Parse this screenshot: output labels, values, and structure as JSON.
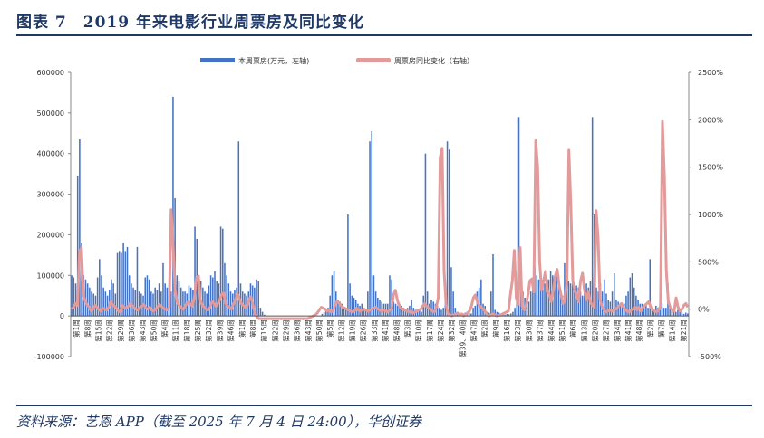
{
  "header": {
    "title": "图表 7　2019 年来电影行业周票房及同比变化"
  },
  "footer": {
    "source": "资料来源：艺恩 APP（截至 2025 年 7 月 4 日 24:00），华创证券"
  },
  "colors": {
    "bar": "#4472c4",
    "line": "#e29a9a",
    "title": "#1f3864"
  },
  "chart_data": {
    "type": "bar+line",
    "title": "",
    "xlabel": "",
    "ylabel_left": "",
    "ylabel_right": "",
    "ylim_left": [
      -100000,
      600000
    ],
    "ylim_right": [
      -500,
      2500
    ],
    "left_ticks": [
      "-100000",
      "0",
      "100000",
      "200000",
      "300000",
      "400000",
      "500000",
      "600000"
    ],
    "right_ticks": [
      "-500%",
      "0%",
      "500%",
      "1000%",
      "1500%",
      "2000%",
      "2500%"
    ],
    "grid": false,
    "legend_position": "top",
    "x_tick_labels": [
      "第1周",
      "第8周",
      "第15周",
      "第22周",
      "第29周",
      "第36周",
      "第43周",
      "第50周",
      "第4周",
      "第11周",
      "第18周",
      "第25周",
      "第32周",
      "第39周",
      "第46周",
      "第1周",
      "第8周",
      "第15周",
      "第22周",
      "第29周",
      "第36周",
      "第43周",
      "第50周",
      "第5周",
      "第12周",
      "第19周",
      "第26周",
      "第33周",
      "第41周",
      "第48周",
      "第3周",
      "第10周",
      "第17周",
      "第24周",
      "第32周",
      "第39、40周",
      "第47周",
      "第2周",
      "第9周",
      "第16周",
      "第23周",
      "第30周",
      "第37周",
      "第44周",
      "第51周",
      "第6周",
      "第13周",
      "第20周",
      "第27周",
      "第34周",
      "第41周",
      "第48周",
      "第2周",
      "第7周",
      "第14周",
      "第21周"
    ],
    "series": [
      {
        "name": "本周票房(万元，左轴)",
        "axis": "left",
        "type": "bar",
        "values": [
          100000,
          95000,
          80000,
          345000,
          435000,
          180000,
          100000,
          90000,
          80000,
          70000,
          60000,
          55000,
          50000,
          95000,
          140000,
          100000,
          70000,
          60000,
          50000,
          65000,
          90000,
          80000,
          55000,
          155000,
          160000,
          155000,
          180000,
          160000,
          170000,
          100000,
          80000,
          70000,
          65000,
          170000,
          60000,
          55000,
          50000,
          95000,
          100000,
          90000,
          60000,
          55000,
          70000,
          65000,
          80000,
          60000,
          130000,
          80000,
          70000,
          65000,
          60000,
          540000,
          290000,
          100000,
          85000,
          70000,
          60000,
          60000,
          55000,
          75000,
          70000,
          65000,
          220000,
          190000,
          100000,
          85000,
          70000,
          60000,
          55000,
          75000,
          100000,
          95000,
          110000,
          85000,
          80000,
          220000,
          215000,
          130000,
          100000,
          80000,
          60000,
          55000,
          65000,
          70000,
          430000,
          80000,
          60000,
          55000,
          50000,
          60000,
          80000,
          75000,
          70000,
          90000,
          85000,
          20000,
          10000,
          3000,
          0,
          0,
          0,
          0,
          0,
          0,
          0,
          0,
          0,
          0,
          0,
          0,
          0,
          0,
          0,
          0,
          0,
          0,
          0,
          0,
          0,
          0,
          0,
          0,
          0,
          0,
          0,
          0,
          5000,
          10000,
          15000,
          20000,
          50000,
          100000,
          110000,
          60000,
          40000,
          35000,
          30000,
          20000,
          15000,
          250000,
          80000,
          50000,
          45000,
          40000,
          30000,
          25000,
          30000,
          20000,
          15000,
          60000,
          430000,
          455000,
          100000,
          60000,
          45000,
          40000,
          35000,
          30000,
          30000,
          30000,
          100000,
          90000,
          35000,
          30000,
          25000,
          30000,
          25000,
          20000,
          15000,
          20000,
          25000,
          40000,
          20000,
          15000,
          10000,
          15000,
          10000,
          50000,
          400000,
          60000,
          30000,
          40000,
          35000,
          30000,
          25000,
          20000,
          15000,
          20000,
          40000,
          430000,
          410000,
          120000,
          60000,
          20000,
          10000,
          8000,
          5000,
          6000,
          8000,
          10000,
          8000,
          6000,
          20000,
          25000,
          60000,
          70000,
          90000,
          30000,
          25000,
          10000,
          8000,
          60000,
          152000,
          15000,
          10000,
          8000,
          5000,
          4000,
          3000,
          5000,
          4000,
          6000,
          10000,
          20000,
          40000,
          490000,
          150000,
          60000,
          45000,
          40000,
          35000,
          60000,
          70000,
          120000,
          100000,
          90000,
          110000,
          85000,
          80000,
          75000,
          90000,
          110000,
          100000,
          95000,
          110000,
          100000,
          60000,
          50000,
          130000,
          115000,
          85000,
          80000,
          95000,
          80000,
          75000,
          70000,
          60000,
          50000,
          65000,
          80000,
          70000,
          85000,
          490000,
          250000,
          70000,
          60000,
          80000,
          60000,
          90000,
          55000,
          40000,
          35000,
          60000,
          105000,
          40000,
          35000,
          30000,
          25000,
          30000,
          50000,
          60000,
          95000,
          105000,
          70000,
          50000,
          40000,
          30000,
          30000,
          25000,
          30000,
          20000,
          140000,
          20000,
          15000,
          25000,
          20000,
          15000,
          30000,
          20000,
          20000,
          80000,
          20000,
          15000,
          10000,
          10000,
          15000,
          10000,
          10000,
          5000,
          8000,
          6000
        ]
      },
      {
        "name": "周票房同比变化（右轴）",
        "axis": "right",
        "type": "line",
        "values": [
          0,
          20,
          60,
          40,
          600,
          650,
          150,
          80,
          40,
          20,
          -20,
          0,
          40,
          20,
          -10,
          -20,
          10,
          0,
          -10,
          20,
          80,
          50,
          30,
          10,
          -20,
          -30,
          40,
          20,
          10,
          30,
          60,
          40,
          20,
          0,
          -10,
          20,
          30,
          50,
          10,
          0,
          20,
          -10,
          -20,
          0,
          20,
          50,
          30,
          10,
          0,
          -10,
          20,
          1050,
          700,
          200,
          80,
          40,
          20,
          0,
          20,
          60,
          80,
          50,
          30,
          140,
          330,
          350,
          100,
          40,
          20,
          0,
          -10,
          20,
          80,
          60,
          30,
          60,
          100,
          160,
          170,
          60,
          30,
          20,
          0,
          60,
          100,
          160,
          110,
          60,
          40,
          20,
          30,
          110,
          130,
          40,
          -50,
          -80,
          -100,
          -100,
          -100,
          -100,
          -100,
          -100,
          -100,
          -100,
          -100,
          -100,
          -100,
          -100,
          -100,
          -100,
          -100,
          -100,
          -100,
          -100,
          -100,
          -100,
          -100,
          -100,
          -100,
          -100,
          -100,
          -100,
          -90,
          -80,
          -70,
          -60,
          -40,
          -10,
          20,
          10,
          0,
          -20,
          -10,
          -30,
          -20,
          40,
          80,
          70,
          40,
          20,
          10,
          0,
          -10,
          -20,
          -30,
          -20,
          10,
          -10,
          -20,
          -10,
          0,
          -10,
          -20,
          -10,
          0,
          10,
          20,
          0,
          -10,
          -20,
          -10,
          -20,
          -30,
          -10,
          0,
          150,
          200,
          100,
          30,
          10,
          0,
          -10,
          -20,
          -30,
          -20,
          -40,
          -30,
          -20,
          -10,
          0,
          30,
          60,
          30,
          10,
          0,
          -20,
          -30,
          20,
          120,
          1600,
          1700,
          400,
          50,
          -50,
          -60,
          -70,
          -60,
          -50,
          -40,
          -60,
          -50,
          -70,
          -60,
          -40,
          -20,
          30,
          120,
          150,
          80,
          40,
          20,
          0,
          -20,
          -60,
          -70,
          -60,
          -50,
          -60,
          -70,
          -65,
          -60,
          -50,
          -40,
          -30,
          -20,
          150,
          300,
          620,
          120,
          50,
          650,
          30,
          -10,
          40,
          150,
          300,
          320,
          180,
          1780,
          1500,
          500,
          200,
          300,
          400,
          200,
          150,
          80,
          200,
          350,
          420,
          250,
          150,
          60,
          100,
          320,
          1680,
          1100,
          300,
          200,
          150,
          80,
          300,
          380,
          200,
          100,
          180,
          80,
          40,
          20,
          1040,
          750,
          100,
          30,
          -10,
          -30,
          -20,
          -10,
          -20,
          -10,
          0,
          20,
          40,
          60,
          20,
          -10,
          -20,
          -30,
          -10,
          0,
          20,
          -10,
          20,
          -20,
          20,
          40,
          60,
          80,
          20,
          -10,
          -20,
          -30,
          -10,
          30,
          1980,
          1400,
          400,
          80,
          20,
          -10,
          -20,
          120,
          20,
          -20,
          0,
          40,
          60,
          20
        ]
      }
    ]
  }
}
